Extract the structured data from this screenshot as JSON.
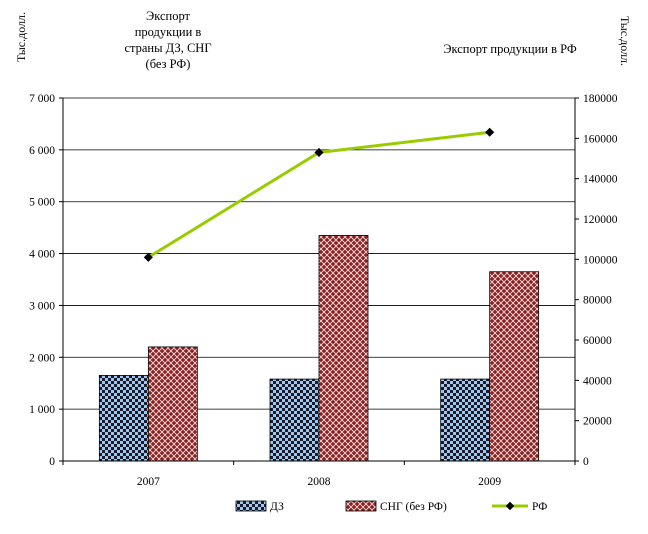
{
  "chart_data": {
    "type": "bar",
    "categories": [
      "2007",
      "2008",
      "2009"
    ],
    "series": [
      {
        "name": "ДЗ",
        "kind": "bar",
        "axis": "left",
        "values": [
          1650,
          1580,
          1580
        ],
        "color": "#9ec8f0",
        "pattern": "checkerboard"
      },
      {
        "name": "СНГ (без РФ)",
        "kind": "bar",
        "axis": "left",
        "values": [
          2200,
          4350,
          3650
        ],
        "color": "#8b2020",
        "pattern": "crosshatch"
      },
      {
        "name": "РФ",
        "kind": "line",
        "axis": "right",
        "values": [
          101000,
          153000,
          163000
        ],
        "color": "#99cc00",
        "marker_color": "#000000"
      }
    ],
    "annotation_left": "Экспорт продукции в страны ДЗ, СНГ (без РФ)",
    "annotation_right": "Экспорт продукции в РФ",
    "ylabel_left": "Тыс.долл.",
    "ylabel_right": "Тыс.долл.",
    "ylim_left": [
      0,
      7000
    ],
    "ylim_right": [
      0,
      180000
    ],
    "yticks_left": [
      "0",
      "1 000",
      "2 000",
      "3 000",
      "4 000",
      "5 000",
      "6 000",
      "7 000"
    ],
    "yticks_right": [
      "0",
      "20000",
      "40000",
      "60000",
      "80000",
      "100000",
      "120000",
      "140000",
      "160000",
      "180000"
    ],
    "grid": true,
    "legend_position": "bottom"
  }
}
